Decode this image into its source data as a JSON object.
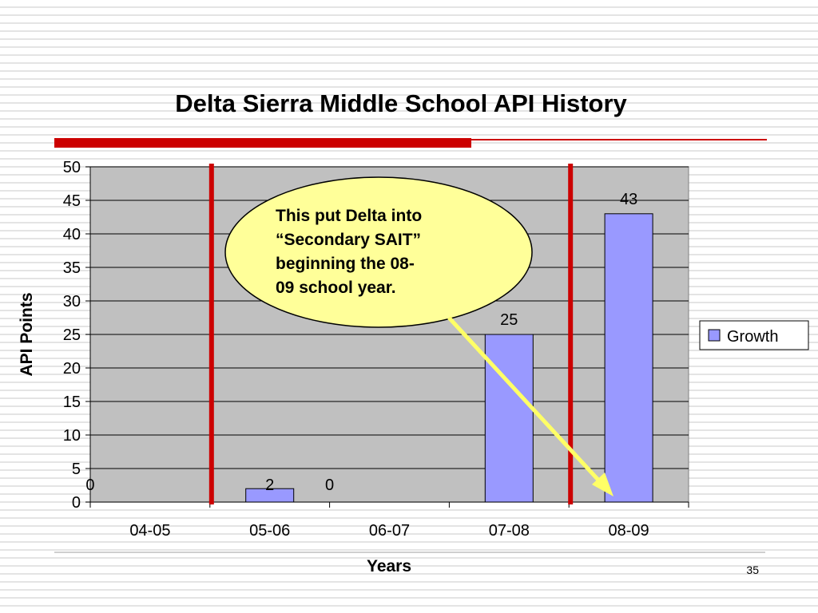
{
  "slide": {
    "title": "Delta Sierra Middle School API History",
    "page_number": "35"
  },
  "callout": {
    "text": "This put Delta into\n“Secondary SAIT”\nbeginning the 08-\n09 school year."
  },
  "colors": {
    "bar_fill": "#9999ff",
    "plot_bg": "#c0c0c0",
    "marker_line": "#cc0000",
    "callout_fill": "#ffff99",
    "arrow": "#ffff66"
  },
  "chart_data": {
    "type": "bar",
    "categories": [
      "04-05",
      "05-06",
      "06-07",
      "07-08",
      "08-09"
    ],
    "series": [
      {
        "name": "Growth",
        "values": [
          0,
          2,
          0,
          25,
          43
        ]
      }
    ],
    "data_labels": [
      "0",
      "2",
      "0",
      "25",
      "43"
    ],
    "xlabel": "Years",
    "ylabel": "API Points",
    "ylim": [
      0,
      50
    ],
    "yticks": [
      0,
      5,
      10,
      15,
      20,
      25,
      30,
      35,
      40,
      45,
      50
    ],
    "grid": true,
    "legend": "right",
    "marker_lines_between": [
      [
        "04-05",
        "05-06"
      ],
      [
        "07-08",
        "08-09"
      ]
    ]
  }
}
